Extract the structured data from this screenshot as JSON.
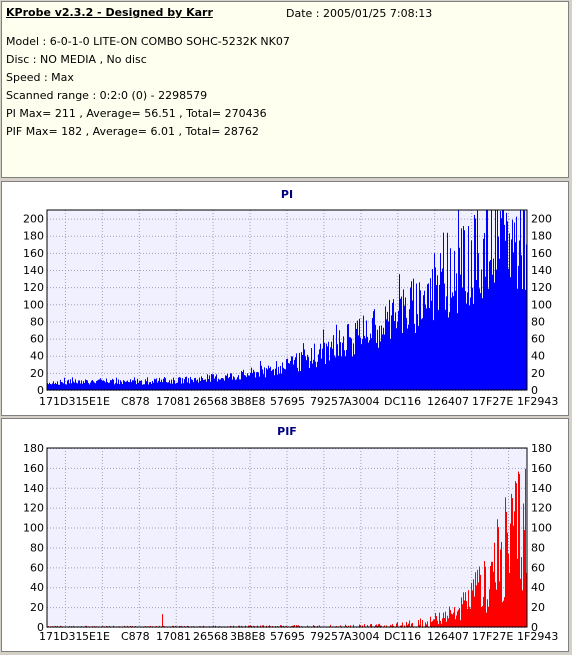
{
  "info": {
    "title": "KProbe v2.3.2 - Designed by Karr",
    "date": "Date : 2005/01/25 7:08:13",
    "lines": [
      "Model : 6-0-1-0 LITE-ON COMBO SOHC-5232K NK07",
      "Disc : NO MEDIA , No disc",
      "Speed : Max",
      "Scanned range : 0:2:0 (0) - 2298579",
      "PI Max= 211 , Average= 56.51 , Total= 270436",
      "PIF Max= 182 , Average= 6.01 , Total= 28762"
    ]
  },
  "chart_data": [
    {
      "type": "bar",
      "title": "PI",
      "color": "#0000ff",
      "ylim": [
        0,
        210
      ],
      "yticks": [
        0,
        20,
        40,
        60,
        80,
        100,
        120,
        140,
        160,
        180,
        200
      ],
      "xtick_labels": [
        "171D31",
        "5E1E",
        "C878",
        "17081",
        "26568",
        "3B8E8",
        "57695",
        "79257",
        "A3004",
        "DC116",
        "126407",
        "17F27E",
        "1F2943"
      ],
      "grid": true,
      "profile_x": [
        0,
        0.1,
        0.2,
        0.3,
        0.4,
        0.5,
        0.55,
        0.6,
        0.65,
        0.7,
        0.75,
        0.8,
        0.85,
        0.9,
        0.95,
        1.0
      ],
      "profile_y": [
        10,
        12,
        11,
        14,
        20,
        32,
        45,
        60,
        75,
        92,
        110,
        135,
        158,
        185,
        203,
        207
      ]
    },
    {
      "type": "bar",
      "title": "PIF",
      "color": "#ff0000",
      "ylim": [
        0,
        180
      ],
      "yticks": [
        0,
        20,
        40,
        60,
        80,
        100,
        120,
        140,
        160,
        180
      ],
      "xtick_labels": [
        "171D31",
        "5E1E",
        "C878",
        "17081",
        "26568",
        "3B8E8",
        "57695",
        "79257",
        "A3004",
        "DC116",
        "126407",
        "17F27E",
        "1F2943"
      ],
      "grid": true,
      "profile_x": [
        0,
        0.3,
        0.6,
        0.7,
        0.75,
        0.8,
        0.85,
        0.88,
        0.91,
        0.94,
        0.97,
        1.0
      ],
      "profile_y": [
        1,
        1,
        2,
        3,
        5,
        10,
        22,
        35,
        60,
        95,
        130,
        160
      ]
    }
  ]
}
